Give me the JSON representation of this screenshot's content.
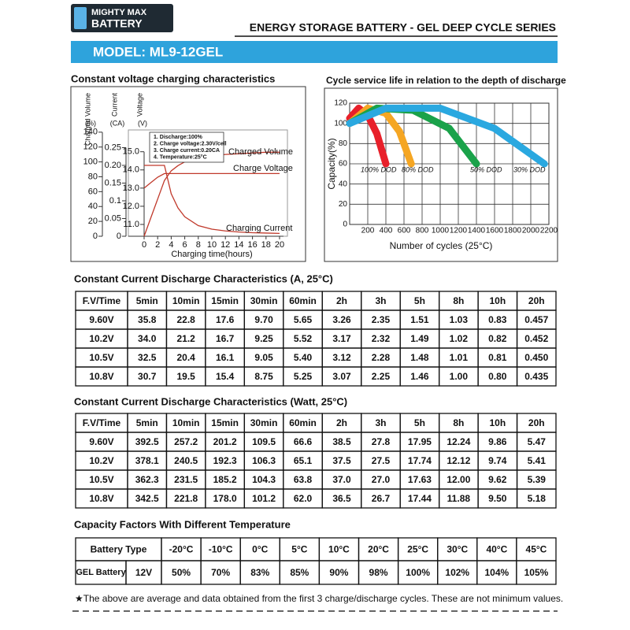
{
  "header": {
    "logo_line1": "MIGHTY MAX",
    "logo_line2": "BATTERY",
    "series_title": "ENERGY STORAGE BATTERY - GEL DEEP CYCLE SERIES",
    "model": "MODEL: ML9-12GEL"
  },
  "chart_data": [
    {
      "type": "line",
      "title": "Constant voltage charging characteristics",
      "xlabel": "Charging time(hours)",
      "x": [
        0,
        1,
        2,
        3,
        4,
        5,
        6,
        8,
        10,
        12,
        14,
        16,
        18,
        20
      ],
      "xlim": [
        0,
        20
      ],
      "xticks": [
        0,
        2,
        4,
        6,
        8,
        10,
        12,
        14,
        16,
        18,
        20
      ],
      "y_axes": [
        {
          "label": "Charged Volume",
          "unit": "(%)",
          "ylim": [
            0,
            143
          ],
          "yticks": [
            0,
            20,
            40,
            60,
            80,
            100,
            120,
            140
          ]
        },
        {
          "label": "Current",
          "unit": "(CA)",
          "ylim": [
            0,
            0.3
          ],
          "yticks": [
            0,
            0.05,
            0.1,
            0.15,
            {
              "value": 0.2,
              "label": "0.20"
            },
            0.25
          ]
        },
        {
          "label": "Voltage",
          "unit": "(V)",
          "ylim": [
            10.35,
            16.2
          ],
          "yticks": [
            {
              "value": 11,
              "label": "11.0"
            },
            {
              "value": 12,
              "label": "12.0"
            },
            {
              "value": 13,
              "label": "13.0"
            },
            {
              "value": 14,
              "label": "14.0"
            },
            {
              "value": 15,
              "label": "15.0"
            }
          ]
        }
      ],
      "series": [
        {
          "name": "Charged Volume",
          "color": "#c0392b",
          "axis": 0,
          "values": [
            0,
            25,
            50,
            75,
            88,
            95,
            100,
            105,
            108,
            110,
            111,
            112,
            113,
            113
          ]
        },
        {
          "name": "Charge Voltage",
          "color": "#c0392b",
          "axis": 2,
          "values": [
            13.0,
            13.3,
            13.6,
            13.8,
            13.8,
            13.8,
            13.8,
            13.8,
            13.8,
            13.8,
            13.8,
            13.8,
            13.8,
            13.8
          ]
        },
        {
          "name": "Charging Current",
          "color": "#c0392b",
          "axis": 1,
          "values": [
            0.2,
            0.2,
            0.2,
            0.2,
            0.12,
            0.08,
            0.055,
            0.03,
            0.02,
            0.015,
            0.012,
            0.01,
            0.009,
            0.008
          ]
        }
      ],
      "annotations": [
        "1. Discharge:100%",
        "2. Charge voltage:2.30V/cell",
        "3. Charge current:0.20CA",
        "4. Temperature:25°C"
      ]
    },
    {
      "type": "line",
      "title": "Cycle service life in relation to the depth of discharge",
      "xlabel": "Number of cycles (25°C)",
      "ylabel": "Capacity(%)",
      "xlim": [
        0,
        2200
      ],
      "xticks": [
        200,
        400,
        600,
        800,
        1000,
        1200,
        1400,
        1600,
        1800,
        2000,
        2200
      ],
      "ylim": [
        0,
        120
      ],
      "yticks": [
        0,
        20,
        40,
        60,
        80,
        100,
        120
      ],
      "grid": true,
      "series": [
        {
          "name": "100% DOD",
          "color": "#e8202a",
          "x": [
            0,
            100,
            200,
            300,
            400
          ],
          "values": [
            105,
            115,
            108,
            90,
            60
          ]
        },
        {
          "name": "80% DOD",
          "color": "#f5a623",
          "x": [
            0,
            200,
            400,
            550,
            680
          ],
          "values": [
            100,
            115,
            110,
            92,
            60
          ]
        },
        {
          "name": "50% DOD",
          "color": "#1aa24a",
          "x": [
            0,
            300,
            700,
            1100,
            1400
          ],
          "values": [
            100,
            115,
            113,
            95,
            60
          ]
        },
        {
          "name": "30% DOD",
          "color": "#2aa8e0",
          "x": [
            0,
            400,
            1000,
            1600,
            2150
          ],
          "values": [
            100,
            115,
            115,
            95,
            60
          ]
        }
      ]
    }
  ],
  "tables": [
    {
      "title": "Constant Current Discharge Characteristics (A, 25°C)",
      "header": [
        "F.V/Time",
        "5min",
        "10min",
        "15min",
        "30min",
        "60min",
        "2h",
        "3h",
        "5h",
        "8h",
        "10h",
        "20h"
      ],
      "rows": [
        [
          "9.60V",
          "35.8",
          "22.8",
          "17.6",
          "9.70",
          "5.65",
          "3.26",
          "2.35",
          "1.51",
          "1.03",
          "0.83",
          "0.457"
        ],
        [
          "10.2V",
          "34.0",
          "21.2",
          "16.7",
          "9.25",
          "5.52",
          "3.17",
          "2.32",
          "1.49",
          "1.02",
          "0.82",
          "0.452"
        ],
        [
          "10.5V",
          "32.5",
          "20.4",
          "16.1",
          "9.05",
          "5.40",
          "3.12",
          "2.28",
          "1.48",
          "1.01",
          "0.81",
          "0.450"
        ],
        [
          "10.8V",
          "30.7",
          "19.5",
          "15.4",
          "8.75",
          "5.25",
          "3.07",
          "2.25",
          "1.46",
          "1.00",
          "0.80",
          "0.435"
        ]
      ]
    },
    {
      "title": "Constant Current Discharge Characteristics (Watt, 25°C)",
      "header": [
        "F.V/Time",
        "5min",
        "10min",
        "15min",
        "30min",
        "60min",
        "2h",
        "3h",
        "5h",
        "8h",
        "10h",
        "20h"
      ],
      "rows": [
        [
          "9.60V",
          "392.5",
          "257.2",
          "201.2",
          "109.5",
          "66.6",
          "38.5",
          "27.8",
          "17.95",
          "12.24",
          "9.86",
          "5.47"
        ],
        [
          "10.2V",
          "378.1",
          "240.5",
          "192.3",
          "106.3",
          "65.1",
          "37.5",
          "27.5",
          "17.74",
          "12.12",
          "9.74",
          "5.41"
        ],
        [
          "10.5V",
          "362.3",
          "231.5",
          "185.2",
          "104.3",
          "63.8",
          "37.0",
          "27.0",
          "17.63",
          "12.00",
          "9.62",
          "5.39"
        ],
        [
          "10.8V",
          "342.5",
          "221.8",
          "178.0",
          "101.2",
          "62.0",
          "36.5",
          "26.7",
          "17.44",
          "11.88",
          "9.50",
          "5.18"
        ]
      ]
    }
  ],
  "capacity_table": {
    "title": "Capacity Factors With Different Temperature",
    "header": [
      "Battery Type",
      "-20°C",
      "-10°C",
      "0°C",
      "5°C",
      "10°C",
      "20°C",
      "25°C",
      "30°C",
      "40°C",
      "45°C"
    ],
    "row": [
      "GEL Battery",
      "12V",
      "50%",
      "70%",
      "83%",
      "85%",
      "90%",
      "98%",
      "100%",
      "102%",
      "104%",
      "105%"
    ]
  },
  "footnote": "★The above are average and data obtained from the first 3 charge/discharge cycles. These are not minimum values."
}
